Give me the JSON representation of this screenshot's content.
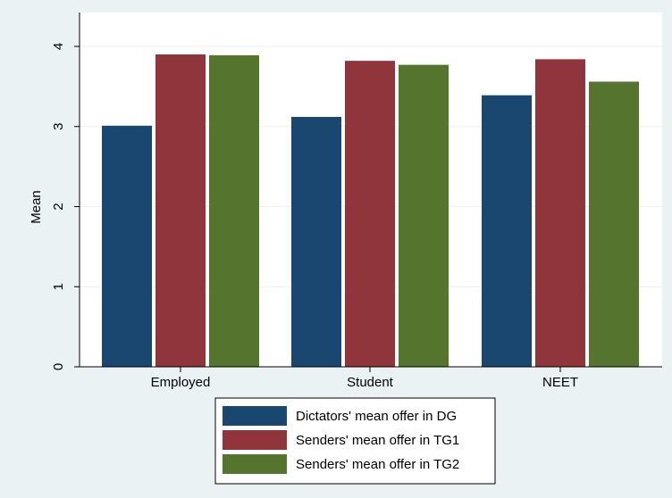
{
  "chart_data": {
    "type": "bar",
    "categories": [
      "Employed",
      "Student",
      "NEET"
    ],
    "series": [
      {
        "name": "Dictators' mean offer in DG",
        "values": [
          3.01,
          3.12,
          3.39
        ],
        "color": "#1a476f"
      },
      {
        "name": "Senders' mean offer in TG1",
        "values": [
          3.9,
          3.82,
          3.84
        ],
        "color": "#90353b"
      },
      {
        "name": "Senders' mean offer in TG2",
        "values": [
          3.89,
          3.77,
          3.56
        ],
        "color": "#55752f"
      }
    ],
    "title": "",
    "xlabel": "",
    "ylabel": "Mean",
    "ylim": [
      0,
      4
    ],
    "yticks": [
      0,
      1,
      2,
      3,
      4
    ],
    "grid": true,
    "legend_position": "bottom"
  },
  "colors": {
    "background": "#eaf2f3",
    "plot_area": "#ffffff",
    "gridline": "#eaf2f3"
  }
}
